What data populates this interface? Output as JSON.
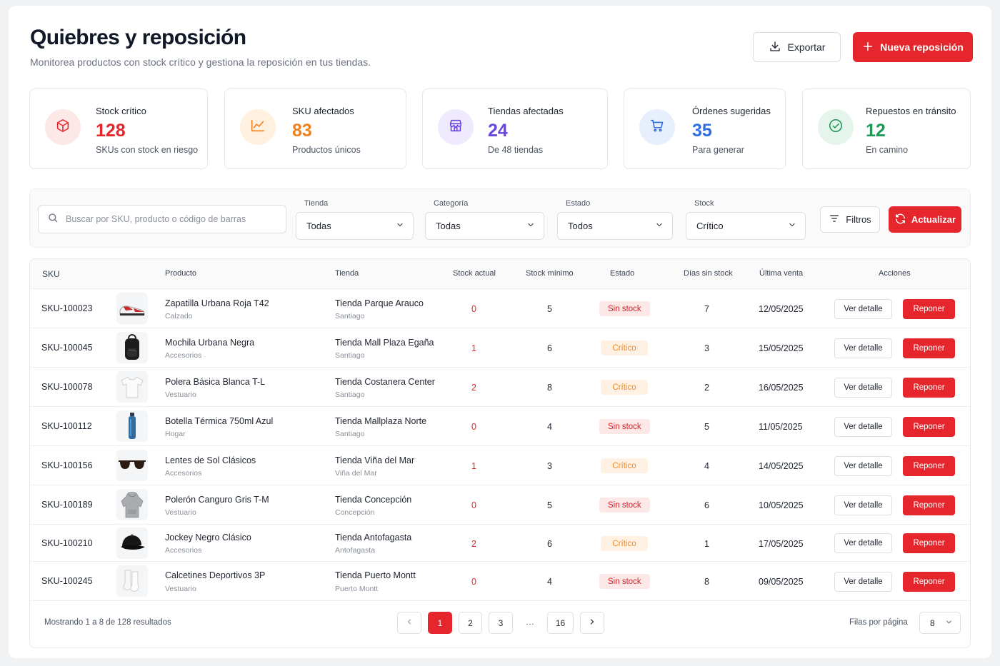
{
  "header": {
    "title": "Quiebres y reposición",
    "subtitle": "Monitorea productos con stock crítico y gestiona la reposición en tus tiendas.",
    "export_label": "Exportar",
    "new_label": "Nueva reposición"
  },
  "kpis": [
    {
      "label": "Stock crítico",
      "value": "128",
      "sub": "SKUs con stock en riesgo",
      "color": "#e5262c",
      "bg": "#fde8e8",
      "icon": "box-icon"
    },
    {
      "label": "SKU afectados",
      "value": "83",
      "sub": "Productos únicos",
      "color": "#f07f1e",
      "bg": "#fff0e0",
      "icon": "trend-chart-icon"
    },
    {
      "label": "Tiendas afectadas",
      "value": "24",
      "sub": "De 48 tiendas",
      "color": "#6b45e0",
      "bg": "#efeafd",
      "icon": "store-icon"
    },
    {
      "label": "Órdenes sugeridas",
      "value": "35",
      "sub": "Para generar",
      "color": "#2f6de0",
      "bg": "#e7effd",
      "icon": "cart-icon"
    },
    {
      "label": "Repuestos en tránsito",
      "value": "12",
      "sub": "En camino",
      "color": "#1d9a55",
      "bg": "#e5f5ec",
      "icon": "check-circle-icon"
    }
  ],
  "filters": {
    "search_placeholder": "Buscar por SKU, producto o código de barras",
    "store_label": "Tienda",
    "store_value": "Todas",
    "category_label": "Categoría",
    "category_value": "Todas",
    "status_label": "Estado",
    "status_value": "Todos",
    "stock_label": "Stock",
    "stock_value": "Crítico",
    "filters_label": "Filtros",
    "refresh_label": "Actualizar"
  },
  "table": {
    "columns": [
      "SKU",
      "Producto",
      "Tienda",
      "Stock actual",
      "Stock mínimo",
      "Estado",
      "Días sin stock",
      "Última venta",
      "Acciones"
    ],
    "view_label": "Ver detalle",
    "restock_label": "Reponer",
    "rows": [
      {
        "sku": "SKU-100023",
        "product": "Zapatilla Urbana Roja T42",
        "category": "Calzado",
        "store": "Tienda Parque Arauco",
        "city": "Santiago",
        "stock": "0",
        "min": "5",
        "status": "Sin stock",
        "status_type": "sin",
        "days": "7",
        "last_sale": "12/05/2025",
        "thumb": "sneaker-icon"
      },
      {
        "sku": "SKU-100045",
        "product": "Mochila Urbana Negra",
        "category": "Accesorios",
        "store": "Tienda Mall Plaza Egaña",
        "city": "Santiago",
        "stock": "1",
        "min": "6",
        "status": "Crítico",
        "status_type": "crit",
        "days": "3",
        "last_sale": "15/05/2025",
        "thumb": "backpack-icon"
      },
      {
        "sku": "SKU-100078",
        "product": "Polera Básica Blanca T-L",
        "category": "Vestuario",
        "store": "Tienda Costanera Center",
        "city": "Santiago",
        "stock": "2",
        "min": "8",
        "status": "Crítico",
        "status_type": "crit",
        "days": "2",
        "last_sale": "16/05/2025",
        "thumb": "tshirt-icon"
      },
      {
        "sku": "SKU-100112",
        "product": "Botella Térmica 750ml Azul",
        "category": "Hogar",
        "store": "Tienda Mallplaza Norte",
        "city": "Santiago",
        "stock": "0",
        "min": "4",
        "status": "Sin stock",
        "status_type": "sin",
        "days": "5",
        "last_sale": "11/05/2025",
        "thumb": "bottle-icon"
      },
      {
        "sku": "SKU-100156",
        "product": "Lentes de Sol Clásicos",
        "category": "Accesorios",
        "store": "Tienda Viña del Mar",
        "city": "Viña del Mar",
        "stock": "1",
        "min": "3",
        "status": "Crítico",
        "status_type": "crit",
        "days": "4",
        "last_sale": "14/05/2025",
        "thumb": "sunglasses-icon"
      },
      {
        "sku": "SKU-100189",
        "product": "Polerón Canguro Gris T-M",
        "category": "Vestuario",
        "store": "Tienda Concepción",
        "city": "Concepción",
        "stock": "0",
        "min": "5",
        "status": "Sin stock",
        "status_type": "sin",
        "days": "6",
        "last_sale": "10/05/2025",
        "thumb": "hoodie-icon"
      },
      {
        "sku": "SKU-100210",
        "product": "Jockey Negro Clásico",
        "category": "Accesorios",
        "store": "Tienda Antofagasta",
        "city": "Antofagasta",
        "stock": "2",
        "min": "6",
        "status": "Crítico",
        "status_type": "crit",
        "days": "1",
        "last_sale": "17/05/2025",
        "thumb": "cap-icon"
      },
      {
        "sku": "SKU-100245",
        "product": "Calcetines Deportivos 3P",
        "category": "Vestuario",
        "store": "Tienda Puerto Montt",
        "city": "Puerto Montt",
        "stock": "0",
        "min": "4",
        "status": "Sin stock",
        "status_type": "sin",
        "days": "8",
        "last_sale": "09/05/2025",
        "thumb": "socks-icon"
      }
    ]
  },
  "footer": {
    "showing": "Mostrando 1 a 8 de 128 resultados",
    "pages": [
      "1",
      "2",
      "3",
      "…",
      "16"
    ],
    "current_page": "1",
    "rows_per_page_label": "Filas por página",
    "rows_per_page": "8"
  }
}
